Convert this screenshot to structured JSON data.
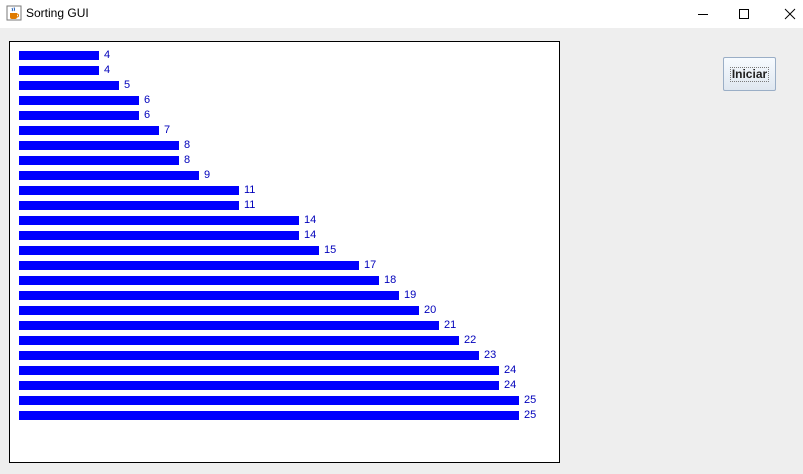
{
  "window": {
    "title": "Sorting GUI",
    "icon": "java-cup-icon"
  },
  "controls": {
    "start_label": "Iniciar"
  },
  "colors": {
    "bar": "#0000ff",
    "label": "#0000bb"
  },
  "bars": {
    "values": [
      4,
      4,
      5,
      6,
      6,
      7,
      8,
      8,
      9,
      11,
      11,
      14,
      14,
      15,
      17,
      18,
      19,
      20,
      21,
      22,
      23,
      24,
      24,
      25,
      25
    ]
  }
}
